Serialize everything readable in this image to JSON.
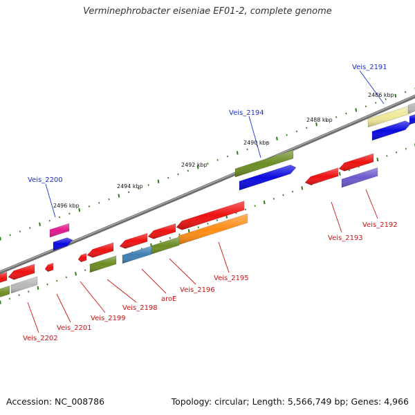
{
  "title": "Verminephrobacter eiseniae EF01-2, complete genome",
  "footer": {
    "accession": "Accession: NC_008786",
    "topology": "Topology: circular; Length: 5,566,749 bp; Genes: 4,966"
  },
  "ticks": [
    "2486 kbp",
    "2488 kbp",
    "2490 kbp",
    "2492 kbp",
    "2494 kbp",
    "2496 kbp"
  ],
  "forward_labels": [
    "Veis_2191",
    "Veis_2194",
    "Veis_2200"
  ],
  "reverse_labels": [
    "Veis_2192",
    "Veis_2193",
    "Veis_2195",
    "Veis_2196",
    "aroE",
    "Veis_2198",
    "Veis_2199",
    "Veis_2201",
    "Veis_2202"
  ],
  "colors": {
    "backbone": "#888888",
    "tick": "#2d7a18",
    "red": "#ee1111",
    "blue": "#0a0ae0",
    "olive": "#6b8c22",
    "orange": "#ff8c14",
    "steel": "#3f7fb5",
    "gray": "#b8b8b8",
    "pale_yellow": "#efe79a",
    "magenta": "#e0188e",
    "purple": "#6a5acd",
    "label_blue": "#1a2ecc",
    "label_red": "#cc1111"
  }
}
